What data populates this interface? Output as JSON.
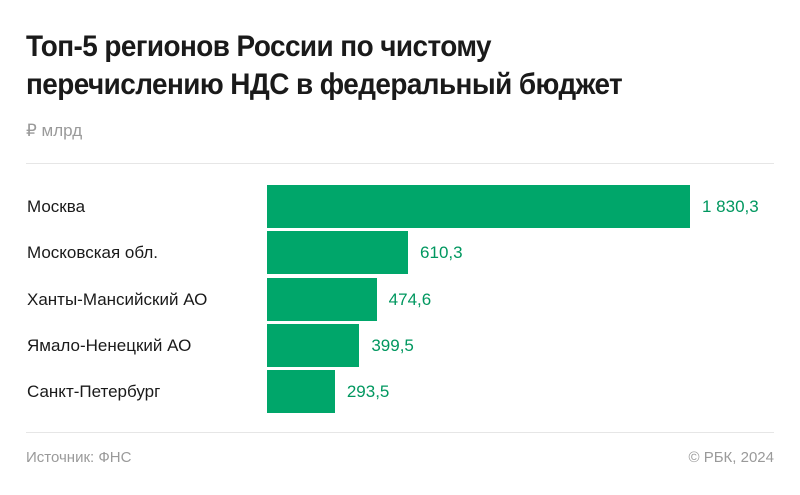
{
  "title_lines": [
    "Топ-5 регионов России по чистому",
    "перечислению НДС в федеральный бюджет"
  ],
  "unit": "₽ млрд",
  "footer": {
    "source": "Источник: ФНС",
    "copyright": "© РБК, 2024"
  },
  "colors": {
    "bar": "#00a66a",
    "value_text": "#00975f"
  },
  "chart_data": {
    "type": "bar",
    "orientation": "horizontal",
    "title": "Топ-5 регионов России по чистому перечислению НДС в федеральный бюджет",
    "subtitle": "₽ млрд",
    "categories": [
      "Москва",
      "Московская обл.",
      "Ханты-Мансийский АО",
      "Ямало-Ненецкий АО",
      "Санкт-Петербург"
    ],
    "values": [
      1830.3,
      610.3,
      474.6,
      399.5,
      293.5
    ],
    "value_labels": [
      "1 830,3",
      "610,3",
      "474,6",
      "399,5",
      "293,5"
    ],
    "xlabel": "",
    "ylabel": "",
    "grid": false,
    "legend": "none",
    "source": "Источник: ФНС"
  }
}
